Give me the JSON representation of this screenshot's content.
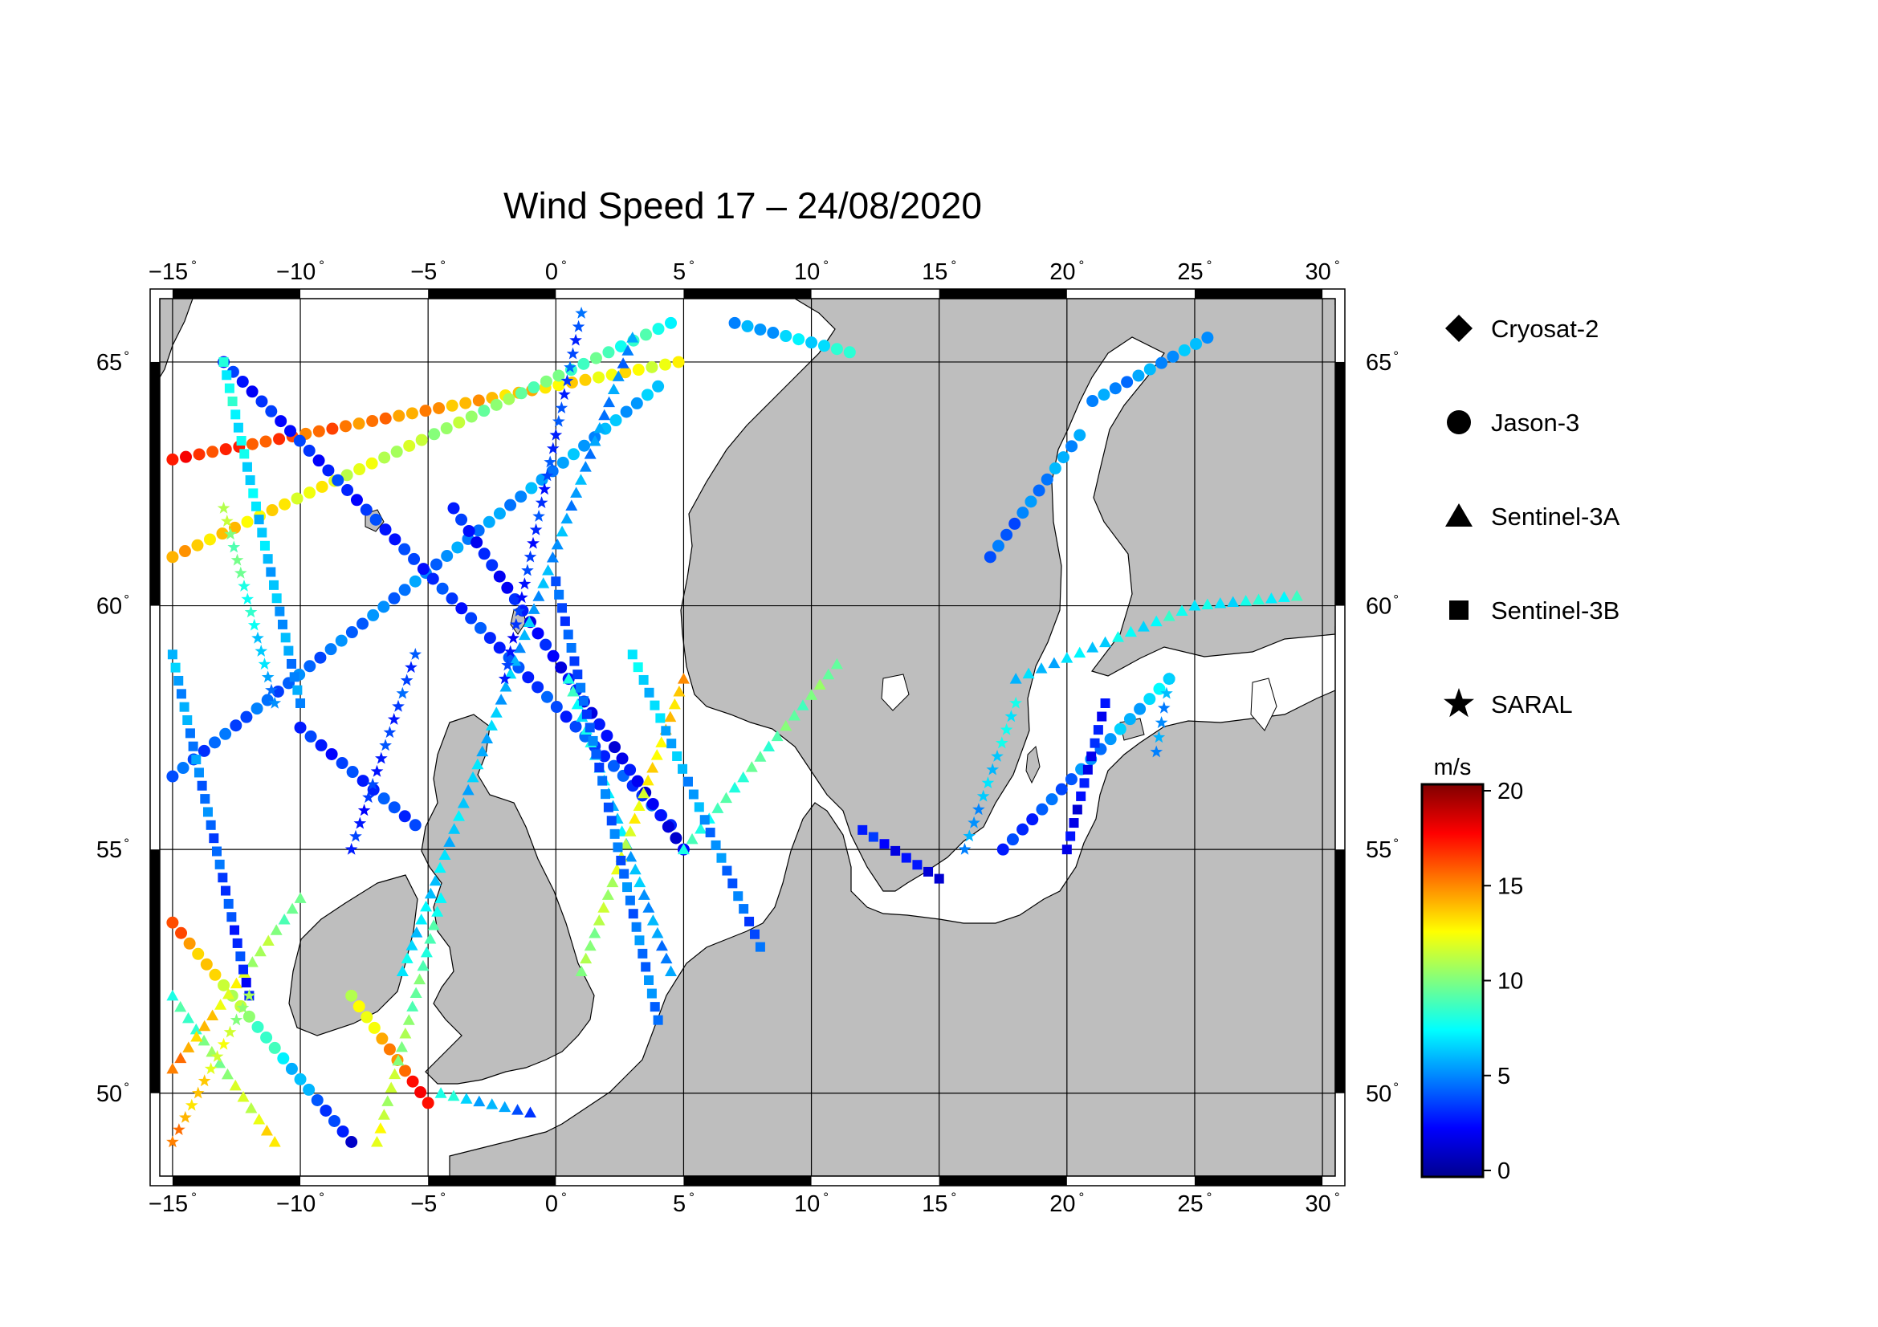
{
  "title": "Wind Speed 17 – 24/08/2020",
  "axes": {
    "lon_ticks": [
      {
        "value": -15,
        "label": "−15"
      },
      {
        "value": -10,
        "label": "−10"
      },
      {
        "value": -5,
        "label": "−5"
      },
      {
        "value": 0,
        "label": "0"
      },
      {
        "value": 5,
        "label": "5"
      },
      {
        "value": 10,
        "label": "10"
      },
      {
        "value": 15,
        "label": "15"
      },
      {
        "value": 20,
        "label": "20"
      },
      {
        "value": 25,
        "label": "25"
      },
      {
        "value": 30,
        "label": "30"
      }
    ],
    "lat_ticks": [
      {
        "value": 50,
        "label": "50"
      },
      {
        "value": 55,
        "label": "55"
      },
      {
        "value": 60,
        "label": "60"
      },
      {
        "value": 65,
        "label": "65"
      }
    ],
    "degree_symbol": "°",
    "lon_range": [
      -15.5,
      30.5
    ],
    "lat_range": [
      48.3,
      66.3
    ]
  },
  "legend": {
    "items": [
      {
        "label": "Cryosat-2",
        "marker": "diamond"
      },
      {
        "label": "Jason-3",
        "marker": "circle"
      },
      {
        "label": "Sentinel-3A",
        "marker": "triangle"
      },
      {
        "label": "Sentinel-3B",
        "marker": "square"
      },
      {
        "label": "SARAL",
        "marker": "star"
      }
    ]
  },
  "colorbar": {
    "unit": "m/s",
    "min": 0,
    "max": 20,
    "ticks": [
      {
        "value": 0,
        "label": "0"
      },
      {
        "value": 5,
        "label": "5"
      },
      {
        "value": 10,
        "label": "10"
      },
      {
        "value": 15,
        "label": "15"
      },
      {
        "value": 20,
        "label": "20"
      }
    ],
    "colormap": [
      "#00008f",
      "#0000ff",
      "#0080ff",
      "#00ffff",
      "#80ff80",
      "#ffff00",
      "#ff8000",
      "#ff0000",
      "#800000"
    ]
  },
  "colors": {
    "land": "#bebebe",
    "sea": "#ffffff",
    "grid": "#000000"
  },
  "chart_data": {
    "type": "scatter",
    "x_axis": "longitude",
    "y_axis": "latitude",
    "value_unit": "m/s",
    "tracks": [
      {
        "satellite": "Jason-3",
        "marker": "circle",
        "lon": [
          -15.0,
          4.8
        ],
        "lat": [
          63.0,
          65.0
        ],
        "wind": [
          17,
          12
        ]
      },
      {
        "satellite": "Jason-3",
        "marker": "circle",
        "lon": [
          -15.0,
          4.0
        ],
        "lat": [
          56.5,
          64.5
        ],
        "wind": [
          4,
          6
        ]
      },
      {
        "satellite": "Jason-3",
        "marker": "circle",
        "lon": [
          -15.0,
          4.5
        ],
        "lat": [
          61.0,
          65.8
        ],
        "wind": [
          14,
          8
        ]
      },
      {
        "satellite": "Jason-3",
        "marker": "circle",
        "lon": [
          -13.0,
          4.5
        ],
        "lat": [
          65.0,
          55.5
        ],
        "wind": [
          3,
          4
        ]
      },
      {
        "satellite": "Jason-3",
        "marker": "circle",
        "lon": [
          -4.0,
          5.0
        ],
        "lat": [
          62.0,
          55.0
        ],
        "wind": [
          3,
          2
        ]
      },
      {
        "satellite": "Jason-3",
        "marker": "circle",
        "lon": [
          -15.0,
          -8.0
        ],
        "lat": [
          53.5,
          49.0
        ],
        "wind": [
          16,
          2
        ]
      },
      {
        "satellite": "Jason-3",
        "marker": "circle",
        "lon": [
          -8.0,
          -5.0
        ],
        "lat": [
          52.0,
          49.8
        ],
        "wind": [
          11,
          18
        ]
      },
      {
        "satellite": "Jason-3",
        "marker": "circle",
        "lon": [
          -10.0,
          -5.5
        ],
        "lat": [
          57.5,
          55.5
        ],
        "wind": [
          3,
          4
        ]
      },
      {
        "satellite": "Jason-3",
        "marker": "circle",
        "lon": [
          17.0,
          20.5
        ],
        "lat": [
          61.0,
          63.5
        ],
        "wind": [
          4,
          6
        ]
      },
      {
        "satellite": "Jason-3",
        "marker": "circle",
        "lon": [
          17.5,
          24.0
        ],
        "lat": [
          55.0,
          58.5
        ],
        "wind": [
          3,
          7
        ]
      },
      {
        "satellite": "Jason-3",
        "marker": "circle",
        "lon": [
          21.0,
          25.5
        ],
        "lat": [
          64.2,
          65.5
        ],
        "wind": [
          5,
          6
        ]
      },
      {
        "satellite": "Jason-3",
        "marker": "circle",
        "lon": [
          7.0,
          11.5
        ],
        "lat": [
          65.8,
          65.2
        ],
        "wind": [
          5,
          8
        ]
      },
      {
        "satellite": "Sentinel-3A",
        "marker": "triangle",
        "lon": [
          -15.0,
          -11.0
        ],
        "lat": [
          52.0,
          49.0
        ],
        "wind": [
          8,
          13
        ]
      },
      {
        "satellite": "Sentinel-3A",
        "marker": "triangle",
        "lon": [
          -15.0,
          -10.0
        ],
        "lat": [
          50.5,
          54.0
        ],
        "wind": [
          15,
          9
        ]
      },
      {
        "satellite": "Sentinel-3A",
        "marker": "triangle",
        "lon": [
          0.5,
          4.5
        ],
        "lat": [
          58.5,
          52.5
        ],
        "wind": [
          8,
          5
        ]
      },
      {
        "satellite": "Sentinel-3A",
        "marker": "triangle",
        "lon": [
          1.0,
          5.0
        ],
        "lat": [
          52.5,
          58.5
        ],
        "wind": [
          10,
          14
        ]
      },
      {
        "satellite": "Sentinel-3A",
        "marker": "triangle",
        "lon": [
          -6.0,
          3.0
        ],
        "lat": [
          52.5,
          65.5
        ],
        "wind": [
          7,
          5
        ]
      },
      {
        "satellite": "Sentinel-3A",
        "marker": "triangle",
        "lon": [
          -7.0,
          -4.5
        ],
        "lat": [
          49.0,
          54.0
        ],
        "wind": [
          12,
          8
        ]
      },
      {
        "satellite": "Sentinel-3A",
        "marker": "triangle",
        "lon": [
          -4.5,
          -1.0
        ],
        "lat": [
          50.0,
          49.6
        ],
        "wind": [
          8,
          4
        ]
      },
      {
        "satellite": "Sentinel-3A",
        "marker": "triangle",
        "lon": [
          5.0,
          11.0
        ],
        "lat": [
          55.0,
          58.8
        ],
        "wind": [
          8,
          10
        ]
      },
      {
        "satellite": "Sentinel-3A",
        "marker": "triangle",
        "lon": [
          18.0,
          25.0
        ],
        "lat": [
          58.5,
          60.0
        ],
        "wind": [
          6,
          8
        ]
      },
      {
        "satellite": "Sentinel-3A",
        "marker": "triangle",
        "lon": [
          25.0,
          29.0
        ],
        "lat": [
          60.0,
          60.2
        ],
        "wind": [
          7,
          8
        ]
      },
      {
        "satellite": "Sentinel-3B",
        "marker": "square",
        "lon": [
          -15.0,
          -12.0
        ],
        "lat": [
          59.0,
          52.0
        ],
        "wind": [
          6,
          3
        ]
      },
      {
        "satellite": "Sentinel-3B",
        "marker": "square",
        "lon": [
          0.0,
          4.0
        ],
        "lat": [
          60.5,
          51.5
        ],
        "wind": [
          4,
          5
        ]
      },
      {
        "satellite": "Sentinel-3B",
        "marker": "square",
        "lon": [
          3.0,
          8.0
        ],
        "lat": [
          59.0,
          53.0
        ],
        "wind": [
          7,
          4
        ]
      },
      {
        "satellite": "Sentinel-3B",
        "marker": "square",
        "lon": [
          -10.0,
          -13.0
        ],
        "lat": [
          58.0,
          65.0
        ],
        "wind": [
          5,
          8
        ]
      },
      {
        "satellite": "Sentinel-3B",
        "marker": "square",
        "lon": [
          12.0,
          15.0
        ],
        "lat": [
          55.4,
          54.4
        ],
        "wind": [
          3,
          2
        ]
      },
      {
        "satellite": "Sentinel-3B",
        "marker": "square",
        "lon": [
          20.0,
          21.5
        ],
        "lat": [
          55.0,
          58.0
        ],
        "wind": [
          2,
          3
        ]
      },
      {
        "satellite": "SARAL",
        "marker": "star",
        "lon": [
          -13.0,
          -11.0
        ],
        "lat": [
          62.0,
          58.0
        ],
        "wind": [
          11,
          5
        ]
      },
      {
        "satellite": "SARAL",
        "marker": "star",
        "lon": [
          -8.0,
          -5.5
        ],
        "lat": [
          55.0,
          59.0
        ],
        "wind": [
          3,
          4
        ]
      },
      {
        "satellite": "SARAL",
        "marker": "star",
        "lon": [
          -2.0,
          1.0
        ],
        "lat": [
          58.5,
          66.0
        ],
        "wind": [
          3,
          4
        ]
      },
      {
        "satellite": "SARAL",
        "marker": "star",
        "lon": [
          23.5,
          24.0
        ],
        "lat": [
          57.0,
          58.5
        ],
        "wind": [
          5,
          6
        ]
      },
      {
        "satellite": "SARAL",
        "marker": "star",
        "lon": [
          16.0,
          18.0
        ],
        "lat": [
          55.0,
          58.0
        ],
        "wind": [
          5,
          8
        ]
      },
      {
        "satellite": "SARAL",
        "marker": "star",
        "lon": [
          -15.0,
          -12.0
        ],
        "lat": [
          49.0,
          52.0
        ],
        "wind": [
          15,
          10
        ]
      }
    ]
  }
}
